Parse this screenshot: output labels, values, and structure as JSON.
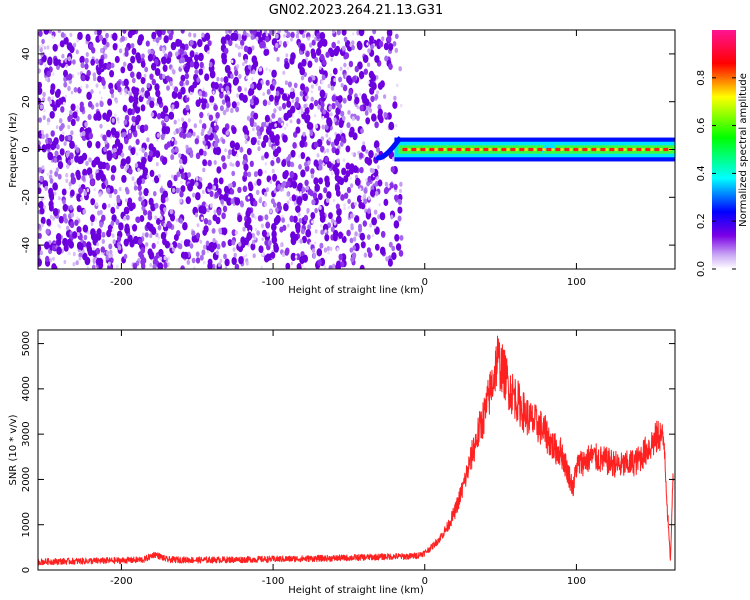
{
  "figure": {
    "title": "GN02.2023.264.21.13.G31"
  },
  "chart_data": [
    {
      "type": "heatmap",
      "title": "GN02.2023.264.21.13.G31",
      "xlabel": "Height of straight line (km)",
      "ylabel": "Frequency (Hz)",
      "xlim": [
        -255,
        165
      ],
      "ylim": [
        -50,
        50
      ],
      "xticks": [
        -200,
        -100,
        0,
        100
      ],
      "yticks": [
        -40,
        -20,
        0,
        20,
        40
      ],
      "grid": false,
      "noise_region_x": [
        -255,
        -15
      ],
      "signal_band": {
        "x_range": [
          -20,
          165
        ],
        "frequency": 0,
        "width_hz": 5,
        "dip": {
          "x": -28,
          "frequency": -3
        },
        "kink": {
          "x": 82,
          "frequency": 2
        }
      },
      "colorbar": {
        "label": "Normalized spectral amplitude",
        "range": [
          0,
          1
        ],
        "ticks": [
          0.0,
          0.2,
          0.4,
          0.6,
          0.8
        ],
        "colors": [
          "#ffffff",
          "#7a00e6",
          "#0000ff",
          "#00ffff",
          "#00ff00",
          "#ffff00",
          "#ff0000",
          "#ff1493"
        ]
      }
    },
    {
      "type": "line",
      "xlabel": "Height of straight line (km)",
      "ylabel": "SNR (10 * v/v)",
      "xlim": [
        -255,
        165
      ],
      "ylim": [
        0,
        5300
      ],
      "xticks": [
        -200,
        -100,
        0,
        100
      ],
      "yticks": [
        0,
        1000,
        2000,
        3000,
        4000,
        5000
      ],
      "grid": false,
      "color": "#ff0000",
      "x": [
        -255,
        -240,
        -220,
        -200,
        -185,
        -178,
        -170,
        -150,
        -120,
        -100,
        -80,
        -60,
        -40,
        -20,
        -10,
        -5,
        0,
        5,
        10,
        15,
        20,
        25,
        30,
        35,
        40,
        45,
        48,
        50,
        53,
        56,
        60,
        65,
        70,
        75,
        80,
        85,
        90,
        95,
        98,
        100,
        110,
        120,
        130,
        140,
        150,
        155,
        158,
        160,
        162,
        164
      ],
      "values": [
        180,
        190,
        200,
        210,
        230,
        350,
        230,
        220,
        230,
        240,
        250,
        260,
        280,
        300,
        300,
        320,
        380,
        520,
        700,
        950,
        1300,
        1800,
        2400,
        3000,
        3500,
        4200,
        4700,
        4500,
        4300,
        4000,
        3800,
        3500,
        3300,
        3200,
        3000,
        2700,
        2600,
        2100,
        1800,
        2300,
        2500,
        2400,
        2300,
        2400,
        2800,
        3000,
        2800,
        1300,
        200,
        2400
      ]
    }
  ]
}
